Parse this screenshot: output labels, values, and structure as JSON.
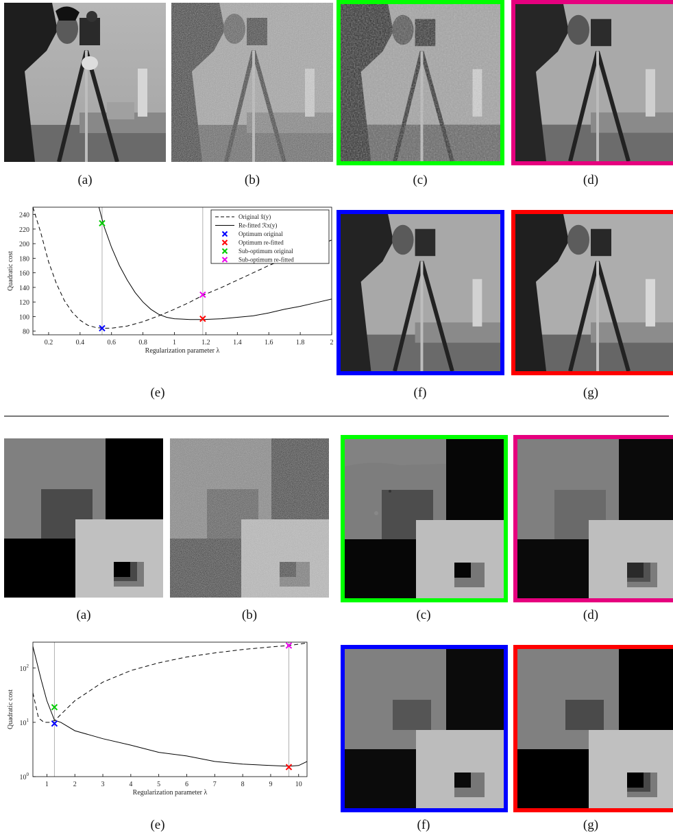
{
  "top": {
    "captions": {
      "a": "(a)",
      "b": "(b)",
      "c": "(c)",
      "d": "(d)",
      "e": "(e)",
      "f": "(f)",
      "g": "(g)"
    },
    "frame_colors": {
      "c": "#00ff00",
      "d": "#e6007e",
      "f": "#0000ff",
      "g": "#ff0000"
    },
    "chart_data": {
      "type": "line",
      "xlabel": "Regularization parameter λ",
      "ylabel": "Quadratic cost",
      "xlim": [
        0.1,
        2.0
      ],
      "ylim": [
        75,
        250
      ],
      "xticks": [
        "0.2",
        "0.4",
        "0.6",
        "0.8",
        "1",
        "1.2",
        "1.4",
        "1.6",
        "1.8",
        "2"
      ],
      "yticks": [
        "80",
        "100",
        "120",
        "140",
        "160",
        "180",
        "200",
        "220",
        "240"
      ],
      "grid": false,
      "legend_position": "top-right",
      "series": [
        {
          "name": "Original x̂(y)",
          "style": "dashed",
          "x": [
            0.1,
            0.15,
            0.2,
            0.25,
            0.3,
            0.35,
            0.4,
            0.45,
            0.5,
            0.55,
            0.6,
            0.7,
            0.8,
            0.9,
            1.0,
            1.1,
            1.18,
            1.3,
            1.4,
            1.5,
            1.6,
            1.7,
            1.8,
            1.9,
            2.0
          ],
          "y": [
            250,
            215,
            175,
            145,
            122,
            106,
            95,
            88,
            85,
            84,
            84,
            87,
            93,
            101,
            110,
            120,
            129,
            140,
            150,
            160,
            170,
            179,
            187,
            196,
            205
          ]
        },
        {
          "name": "Re-fitted ℛx(y)",
          "style": "solid",
          "x": [
            0.52,
            0.55,
            0.6,
            0.65,
            0.7,
            0.75,
            0.8,
            0.85,
            0.9,
            0.95,
            1.0,
            1.05,
            1.1,
            1.18,
            1.3,
            1.4,
            1.5,
            1.6,
            1.7,
            1.8,
            1.9,
            2.0
          ],
          "y": [
            250,
            225,
            195,
            170,
            150,
            133,
            120,
            110,
            103,
            99,
            97,
            96.5,
            96,
            96,
            97,
            99,
            101,
            105,
            110,
            114,
            119,
            124
          ]
        }
      ],
      "markers": [
        {
          "name": "Optimum original",
          "x": 0.54,
          "y": 84,
          "color": "#0000ff"
        },
        {
          "name": "Optimum re-fitted",
          "x": 1.18,
          "y": 97,
          "color": "#ff0000"
        },
        {
          "name": "Sub-optimum original",
          "x": 0.54,
          "y": 228,
          "color": "#00cc00"
        },
        {
          "name": "Sub-optimum re-fitted",
          "x": 1.18,
          "y": 130,
          "color": "#ee00ee"
        }
      ],
      "vlines": [
        0.54,
        1.18
      ]
    }
  },
  "bottom": {
    "captions": {
      "a": "(a)",
      "b": "(b)",
      "c": "(c)",
      "d": "(d)",
      "e": "(e)",
      "f": "(f)",
      "g": "(g)"
    },
    "frame_colors": {
      "c": "#00ff00",
      "d": "#e6007e",
      "f": "#0000ff",
      "g": "#ff0000"
    },
    "chart_data": {
      "type": "line",
      "xlabel": "Regularization parameter λ",
      "ylabel": "Quadratic cost",
      "xlim": [
        0.5,
        10.3
      ],
      "ylim": [
        1,
        300
      ],
      "yscale": "log",
      "xticks": [
        "1",
        "2",
        "3",
        "4",
        "5",
        "6",
        "7",
        "8",
        "9",
        "10"
      ],
      "yticks": [
        "10^0",
        "10^1",
        "10^2"
      ],
      "grid": false,
      "series": [
        {
          "name": "",
          "style": "dashed",
          "x": [
            0.5,
            0.7,
            0.9,
            1.1,
            1.3,
            1.5,
            2,
            3,
            4,
            5,
            6,
            7,
            8,
            9,
            9.65,
            10.3
          ],
          "y": [
            35,
            12,
            10,
            10,
            11,
            14,
            25,
            55,
            90,
            125,
            160,
            190,
            220,
            245,
            260,
            290
          ]
        },
        {
          "name": "",
          "style": "solid",
          "x": [
            0.5,
            0.8,
            1.0,
            1.27,
            1.5,
            2,
            3,
            4,
            5,
            6,
            7,
            8,
            9,
            9.65,
            10.0,
            10.3
          ],
          "y": [
            250,
            60,
            25,
            11,
            10,
            7,
            5,
            3.8,
            2.8,
            2.4,
            1.9,
            1.7,
            1.6,
            1.55,
            1.6,
            1.9
          ]
        }
      ],
      "markers": [
        {
          "name": "",
          "x": 1.27,
          "y": 9.5,
          "color": "#0000ff"
        },
        {
          "name": "",
          "x": 9.65,
          "y": 1.5,
          "color": "#ff0000"
        },
        {
          "name": "",
          "x": 1.27,
          "y": 19,
          "color": "#00cc00"
        },
        {
          "name": "",
          "x": 9.65,
          "y": 260,
          "color": "#ee00ee"
        }
      ],
      "vlines": [
        1.27,
        9.65
      ]
    }
  }
}
